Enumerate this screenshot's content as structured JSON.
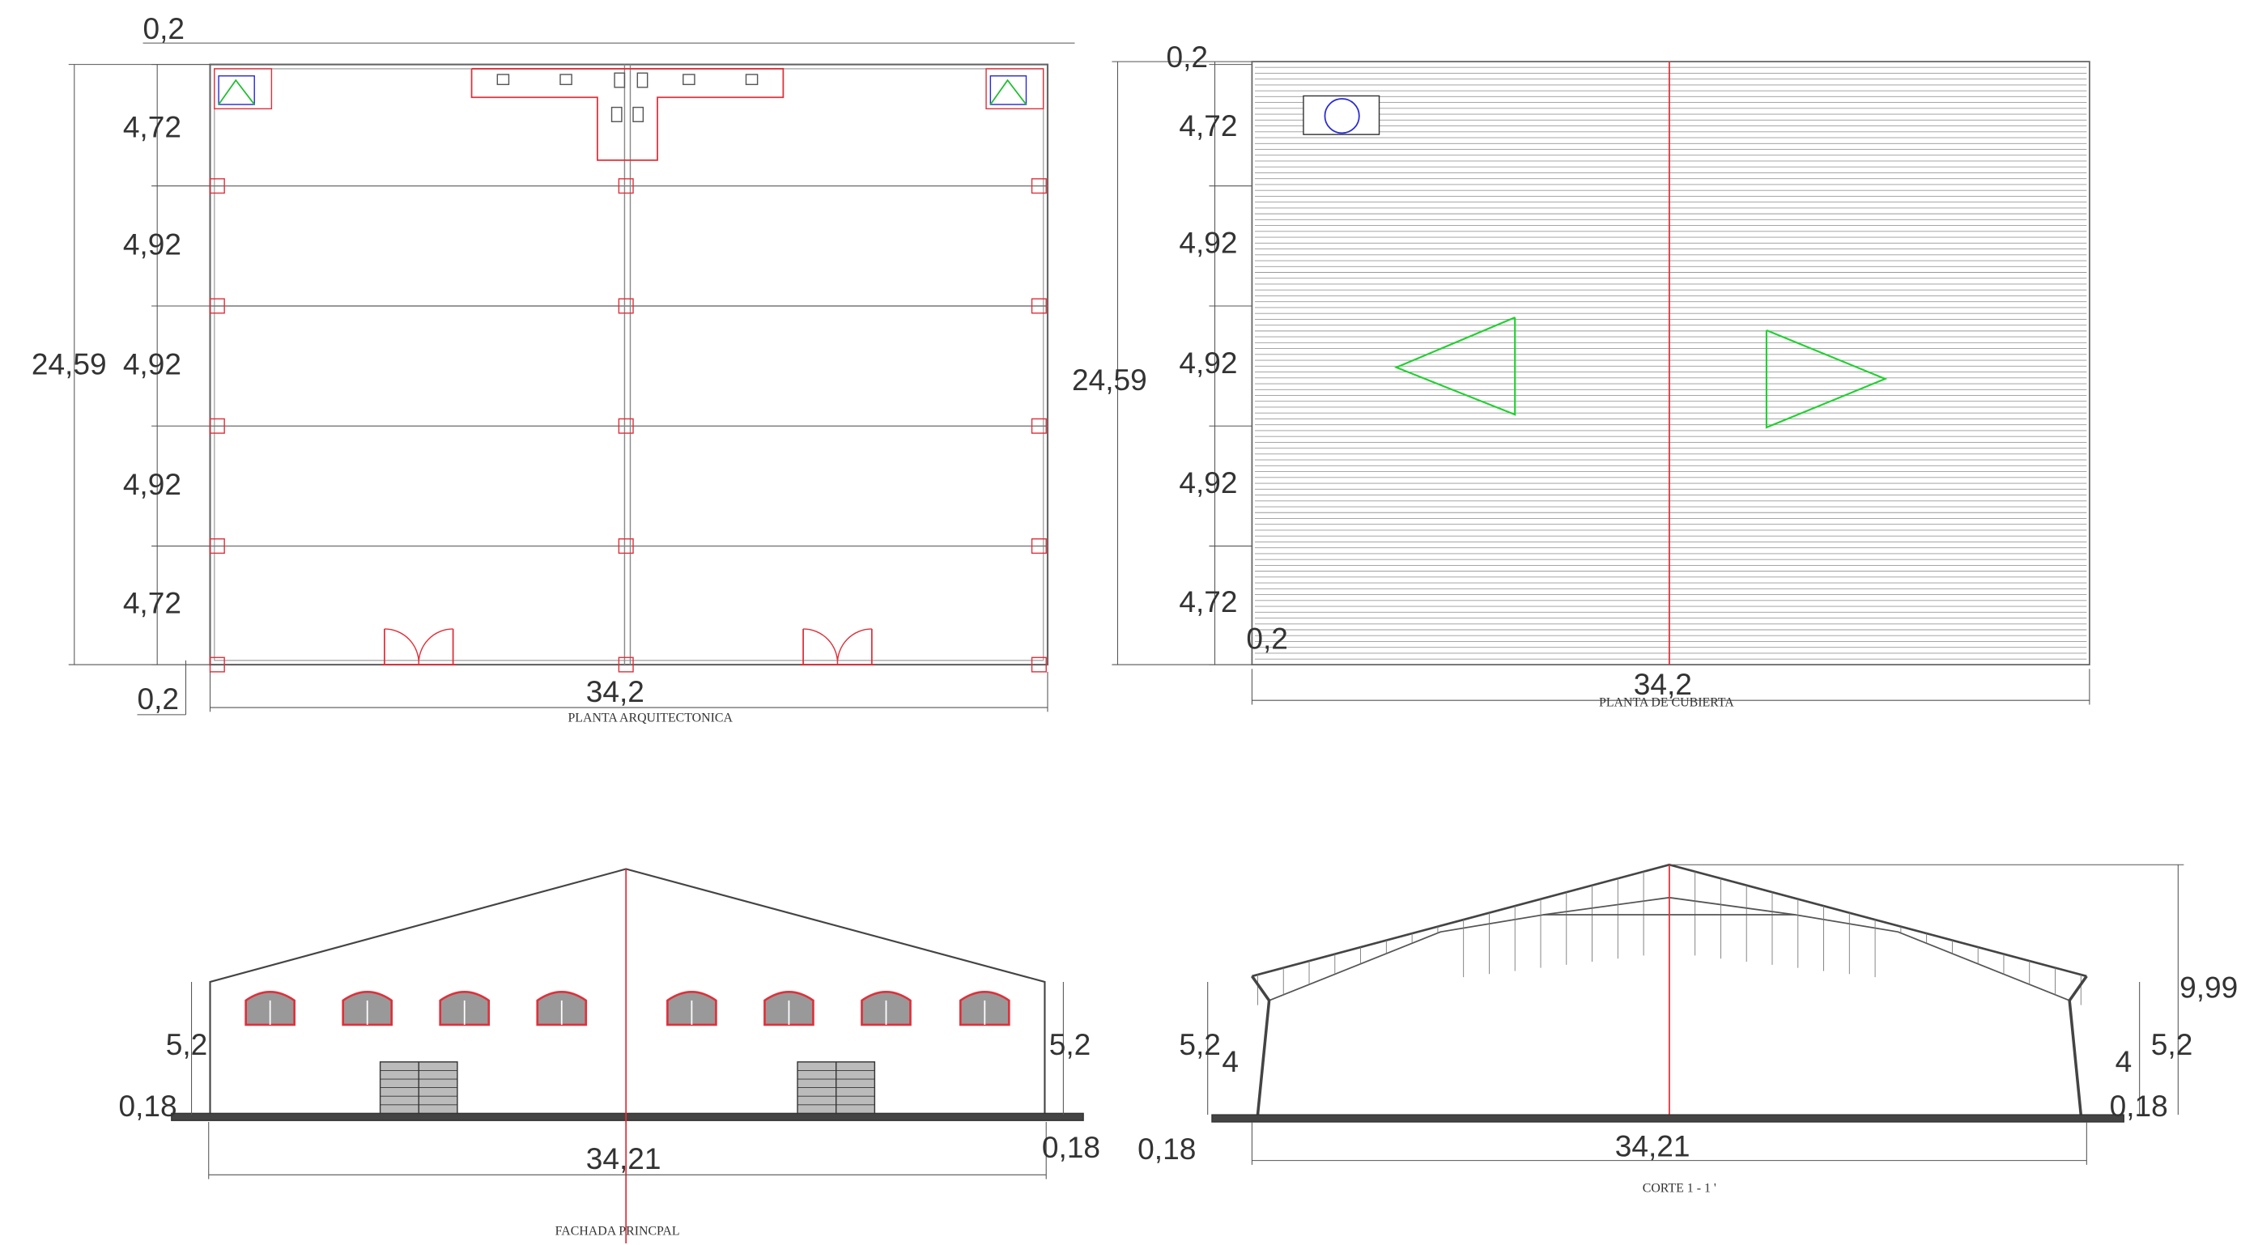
{
  "drawings": [
    {
      "title": "PLANTA ARQUITECTONICA",
      "dims": {
        "top": "0,2",
        "bays": [
          "4,72",
          "4,92",
          "4,92",
          "4,92",
          "4,72"
        ],
        "depth": "24,59",
        "width": "34,2",
        "bottom": "0,2"
      }
    },
    {
      "title": "PLANTA DE CUBIERTA",
      "dims": {
        "top": "0,2",
        "bays": [
          "4,72",
          "4,92",
          "4,92",
          "4,92",
          "4,72"
        ],
        "depth": "24,59",
        "width": "34,2",
        "bottom": "0,2"
      }
    },
    {
      "title": "FACHADA PRINCPAL",
      "dims": {
        "height_left": "5,2",
        "height_right": "5,2",
        "base_left": "0,18",
        "base_right": "0,18",
        "width": "34,21"
      }
    },
    {
      "title": "CORTE   1 - 1 '",
      "dims": {
        "ridge": "9,99",
        "height_left": "5,2",
        "inner_left": "4",
        "inner_right": "4",
        "height_right": "5,2",
        "base_right": "0,18",
        "base_left": "0,18",
        "width": "34,21"
      }
    }
  ]
}
